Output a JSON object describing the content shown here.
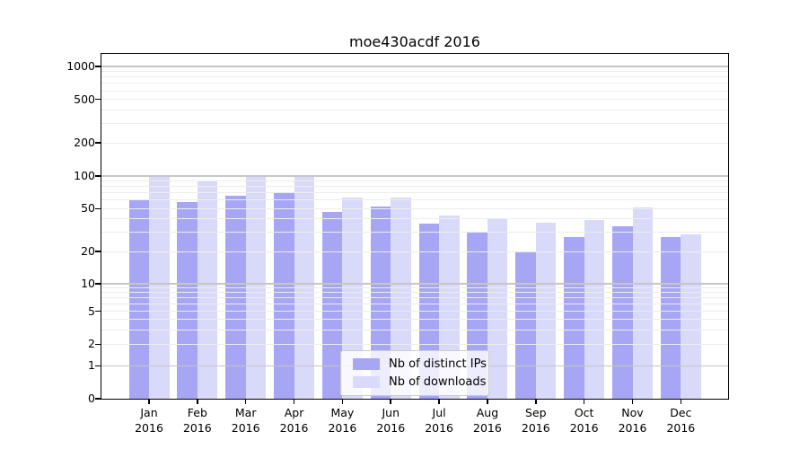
{
  "title": "moe430acdf 2016",
  "chart_data": {
    "type": "bar",
    "title": "moe430acdf 2016",
    "xlabel": "",
    "ylabel": "",
    "yscale": "symlog",
    "y_ticks": [
      0,
      1,
      2,
      5,
      10,
      20,
      50,
      100,
      200,
      500,
      1000
    ],
    "ylim": [
      0,
      1200
    ],
    "grid": "on",
    "grid_over_bars": true,
    "legend_position": "lower-center-inside",
    "categories": [
      "Jan 2016",
      "Feb 2016",
      "Mar 2016",
      "Apr 2016",
      "May 2016",
      "Jun 2016",
      "Jul 2016",
      "Aug 2016",
      "Sep 2016",
      "Oct 2016",
      "Nov 2016",
      "Dec 2016"
    ],
    "series": [
      {
        "name": "Nb of distinct IPs",
        "color": "#a6a6f4",
        "values": [
          61,
          57,
          66,
          70,
          47,
          52,
          36,
          30,
          20,
          27,
          34,
          27
        ]
      },
      {
        "name": "Nb of downloads",
        "color": "#d9d9f9",
        "values": [
          98,
          89,
          102,
          98,
          63,
          63,
          43,
          41,
          37,
          39,
          51,
          29
        ]
      }
    ]
  },
  "colors": {
    "background": "#ffffff",
    "axis": "#000000",
    "major_grid": "#c6c6c6",
    "minor_grid": "#ededed",
    "ips_bar": "#a6a6f4",
    "downloads_bar": "#d9d9f9"
  }
}
